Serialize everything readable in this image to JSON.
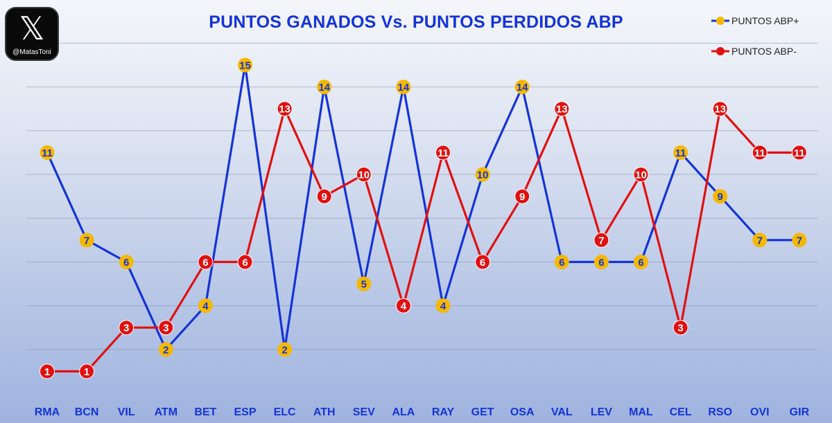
{
  "watermark": {
    "handle": "@MatasToni",
    "icon": "x-logo-icon"
  },
  "colors": {
    "title": "#1433d6",
    "gridline": "#8a93ad",
    "series_plus_line": "#1433d6",
    "series_plus_marker": "#f5b800",
    "series_minus_line": "#e01010",
    "series_minus_marker": "#e01010"
  },
  "chart_data": {
    "type": "line",
    "title": "PUNTOS GANADOS Vs. PUNTOS PERDIDOS ABP",
    "xlabel": "",
    "ylabel": "",
    "ylim": [
      0,
      16
    ],
    "grid": true,
    "legend_position": "top-right",
    "categories": [
      "RMA",
      "BCN",
      "VIL",
      "ATM",
      "BET",
      "ESP",
      "ELC",
      "ATH",
      "SEV",
      "ALA",
      "RAY",
      "GET",
      "OSA",
      "VAL",
      "LEV",
      "MAL",
      "CEL",
      "RSO",
      "OVI",
      "GIR"
    ],
    "series": [
      {
        "name": "PUNTOS ABP+",
        "values": [
          11,
          7,
          6,
          2,
          4,
          15,
          2,
          14,
          5,
          14,
          4,
          10,
          14,
          6,
          6,
          6,
          11,
          9,
          7,
          7
        ]
      },
      {
        "name": "PUNTOS ABP-",
        "values": [
          1,
          1,
          3,
          3,
          6,
          6,
          13,
          9,
          10,
          4,
          11,
          6,
          9,
          13,
          7,
          10,
          3,
          13,
          11,
          11
        ]
      }
    ]
  }
}
